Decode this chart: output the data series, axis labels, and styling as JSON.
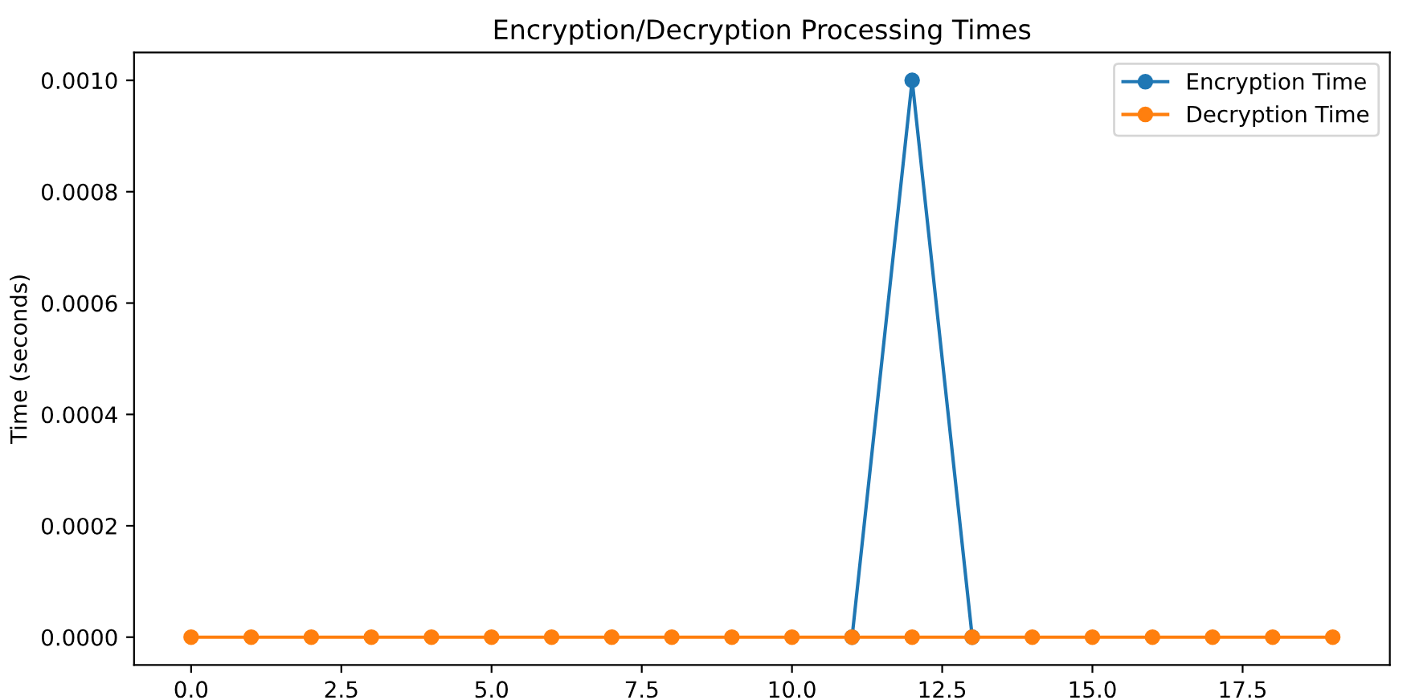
{
  "chart_data": {
    "type": "line",
    "title": "Encryption/Decryption Processing Times",
    "ylabel": "Time (seconds)",
    "x": [
      0,
      1,
      2,
      3,
      4,
      5,
      6,
      7,
      8,
      9,
      10,
      11,
      12,
      13,
      14,
      15,
      16,
      17,
      18,
      19
    ],
    "series": [
      {
        "name": "Encryption Time",
        "color": "#1f77b4",
        "values": [
          null,
          null,
          null,
          null,
          null,
          null,
          null,
          null,
          null,
          null,
          null,
          0,
          0.001,
          0,
          null,
          null,
          null,
          null,
          null,
          null
        ]
      },
      {
        "name": "Decryption Time",
        "color": "#ff7f0e",
        "values": [
          0,
          0,
          0,
          0,
          0,
          0,
          0,
          0,
          0,
          0,
          0,
          0,
          0,
          0,
          0,
          0,
          0,
          0,
          0,
          0
        ]
      }
    ],
    "xlim": [
      -0.95,
      19.95
    ],
    "ylim": [
      -5e-05,
      0.00105
    ],
    "xticks": [
      {
        "value": 0,
        "label": "0.0"
      },
      2.5,
      {
        "value": 5,
        "label": "5.0"
      },
      7.5,
      {
        "value": 10,
        "label": "10.0"
      },
      12.5,
      {
        "value": 15,
        "label": "15.0"
      },
      17.5
    ],
    "yticks": [
      {
        "value": 0,
        "label": "0.0000"
      },
      {
        "value": 0.0002,
        "label": "0.0002"
      },
      {
        "value": 0.0004,
        "label": "0.0004"
      },
      {
        "value": 0.0006,
        "label": "0.0006"
      },
      {
        "value": 0.0008,
        "label": "0.0008"
      },
      {
        "value": 0.001,
        "label": "0.0010"
      }
    ],
    "marker": "circle",
    "line_style": "solid",
    "legend": "top right",
    "grid": false
  }
}
